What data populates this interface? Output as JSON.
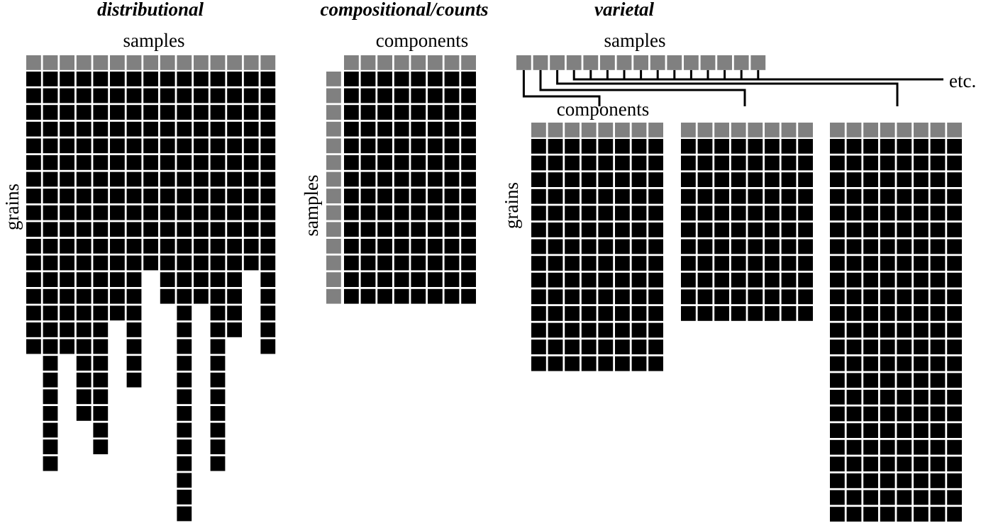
{
  "titles": {
    "distributional": "distributional",
    "compositional": "compositional/counts",
    "varietal": "varietal"
  },
  "labels": {
    "dist_samples": "samples",
    "dist_grains": "grains",
    "comp_components": "components",
    "comp_samples": "samples",
    "var_samples": "samples",
    "var_components": "components",
    "var_grains": "grains",
    "var_etc": "etc."
  },
  "colors": {
    "data_cell": "#000000",
    "header_cell": "#808080",
    "background": "#ffffff"
  },
  "distributional": {
    "samples": 15,
    "grains_per_sample": [
      17,
      24,
      17,
      21,
      23,
      15,
      19,
      12,
      14,
      27,
      14,
      24,
      16,
      12,
      17
    ]
  },
  "compositional": {
    "samples": 14,
    "components": 8
  },
  "varietal": {
    "samples": 15,
    "tables": [
      {
        "components": 8,
        "grains": 14
      },
      {
        "components": 8,
        "grains": 11
      },
      {
        "components": 8,
        "grains": 23
      }
    ]
  }
}
